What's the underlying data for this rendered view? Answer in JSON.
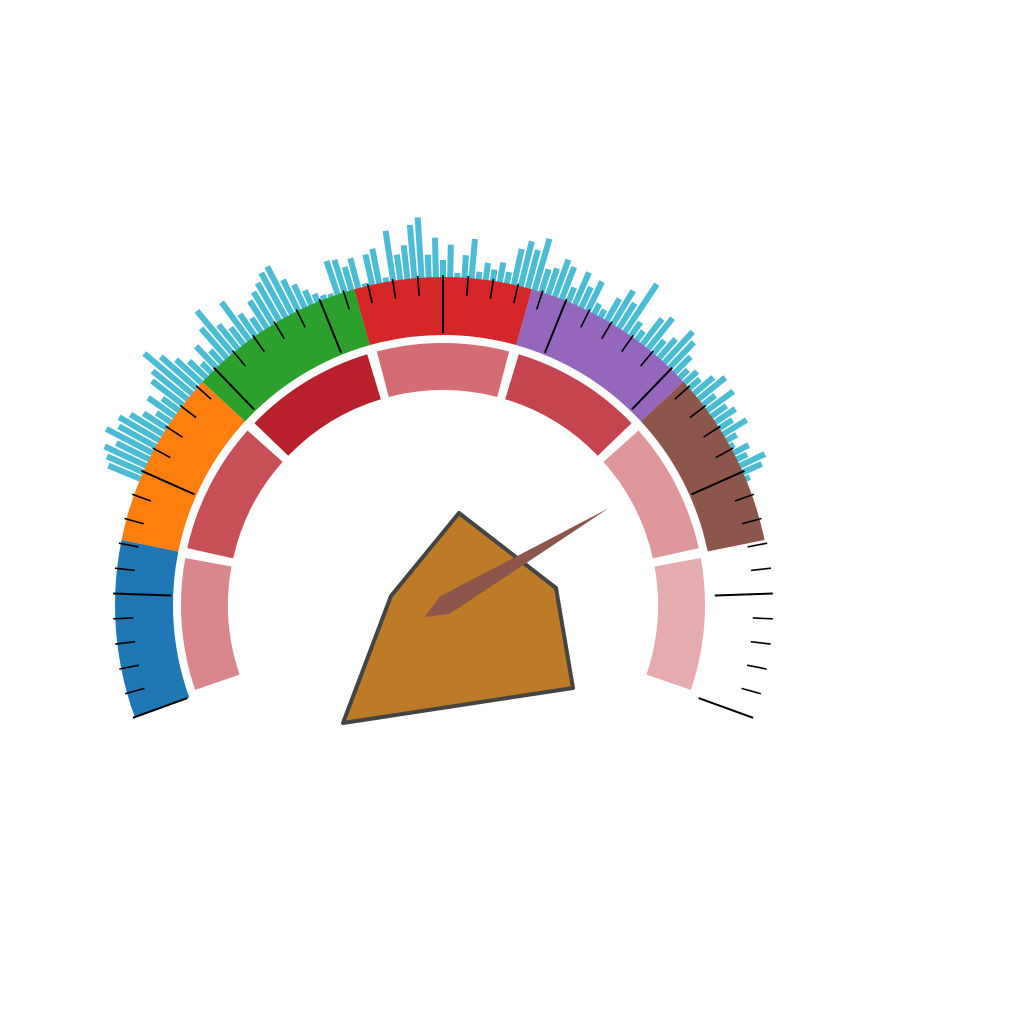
{
  "chart_data": {
    "type": "gauge",
    "title": "",
    "outer_band": {
      "segments": [
        {
          "color": "#1f77b4"
        },
        {
          "color": "#ff7f0e"
        },
        {
          "color": "#2ca02c"
        },
        {
          "color": "#d62728"
        },
        {
          "color": "#9467bd"
        },
        {
          "color": "#8c564b"
        },
        {
          "color": "#ffffff"
        }
      ]
    },
    "inner_band": {
      "segments": [
        {
          "color": "#d9868c"
        },
        {
          "color": "#c84f57"
        },
        {
          "color": "#b8202c"
        },
        {
          "color": "#d46c73"
        },
        {
          "color": "#c64350"
        },
        {
          "color": "#e0979c"
        },
        {
          "color": "#e6abae"
        }
      ]
    },
    "histogram": {
      "color": "#4bbcd4",
      "values": [
        0.55,
        0.62,
        0.71,
        0.58,
        0.8,
        0.66,
        0.72,
        0.6,
        0.45,
        0.3,
        0.52,
        0.35,
        0.62,
        0.7,
        0.95,
        0.74,
        0.55,
        0.4,
        0.25,
        0.48,
        0.3,
        0.62,
        0.85,
        0.5,
        0.36,
        0.73,
        0.44,
        0.3,
        0.52,
        0.6,
        0.68,
        0.78,
        0.82,
        0.55,
        0.42,
        0.28,
        0.18,
        0.12,
        0.1,
        0.56,
        0.54,
        0.4,
        0.5,
        0.1,
        0.5,
        0.56,
        0.12,
        0.78,
        0.42,
        0.54,
        0.82,
        0.92,
        0.38,
        0.62,
        0.3,
        0.52,
        0.12,
        0.38,
        0.62,
        0.16,
        0.3,
        0.22,
        0.34,
        0.22,
        0.58,
        0.72,
        0.62,
        0.82,
        0.4,
        0.45,
        0.62,
        0.55,
        0.28,
        0.56,
        0.38,
        0.52,
        0.22,
        0.18,
        0.42,
        0.62,
        0.48,
        0.88,
        0.3,
        0.22,
        0.52,
        0.62,
        0.3,
        0.42,
        0.66,
        0.56,
        0.38,
        0.22,
        0.3,
        0.26,
        0.42,
        0.55,
        0.28,
        0.52,
        0.32,
        0.4,
        0.28,
        0.45,
        0.22,
        0.12,
        0.3,
        0.22,
        0.45,
        0.35,
        0.12
      ]
    },
    "ticks": {
      "major_every": 5,
      "count": 51
    },
    "needle": {
      "value": 0.77,
      "color": "#8c564b"
    },
    "hub": {
      "color": "#bd7b27",
      "stroke": "#444444"
    }
  }
}
